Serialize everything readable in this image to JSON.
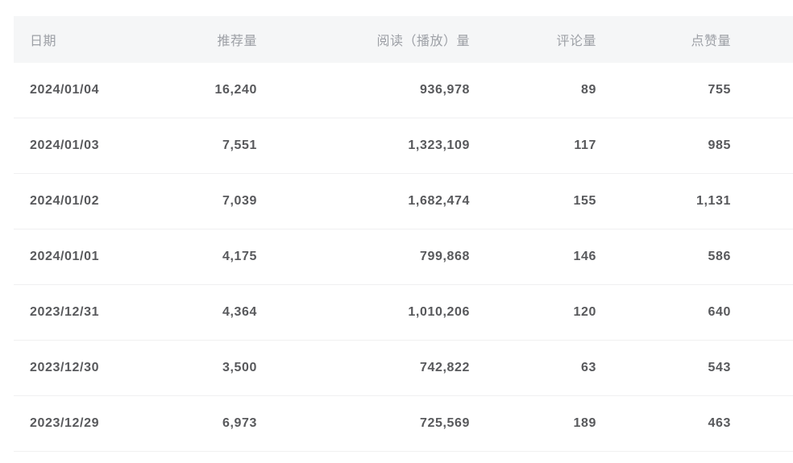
{
  "table": {
    "columns": [
      {
        "label": "日期"
      },
      {
        "label": "推荐量"
      },
      {
        "label": "阅读（播放）量"
      },
      {
        "label": "评论量"
      },
      {
        "label": "点赞量"
      }
    ],
    "rows": [
      {
        "date": "2024/01/04",
        "recommend": "16,240",
        "reads": "936,978",
        "comments": "89",
        "likes": "755"
      },
      {
        "date": "2024/01/03",
        "recommend": "7,551",
        "reads": "1,323,109",
        "comments": "117",
        "likes": "985"
      },
      {
        "date": "2024/01/02",
        "recommend": "7,039",
        "reads": "1,682,474",
        "comments": "155",
        "likes": "1,131"
      },
      {
        "date": "2024/01/01",
        "recommend": "4,175",
        "reads": "799,868",
        "comments": "146",
        "likes": "586"
      },
      {
        "date": "2023/12/31",
        "recommend": "4,364",
        "reads": "1,010,206",
        "comments": "120",
        "likes": "640"
      },
      {
        "date": "2023/12/30",
        "recommend": "3,500",
        "reads": "742,822",
        "comments": "63",
        "likes": "543"
      },
      {
        "date": "2023/12/29",
        "recommend": "6,973",
        "reads": "725,569",
        "comments": "189",
        "likes": "463"
      }
    ]
  },
  "colors": {
    "header_bg": "#f5f6f7",
    "header_text": "#9da0a6",
    "body_text": "#58595c",
    "divider": "#f0f0f1",
    "page_bg": "#ffffff"
  }
}
